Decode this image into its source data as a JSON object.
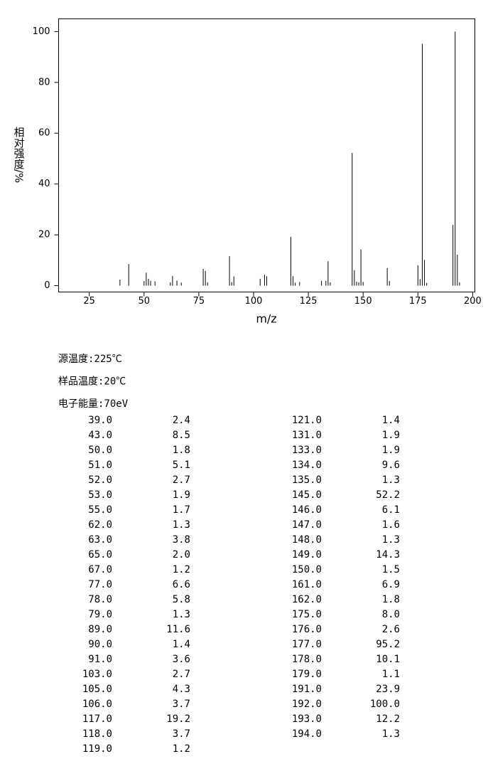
{
  "chart_data": {
    "type": "bar",
    "xlabel": "m/z",
    "ylabel": "相对强度/%",
    "color": "#000000",
    "x": [
      39,
      43,
      50,
      51,
      52,
      53,
      55,
      62,
      63,
      65,
      67,
      77,
      78,
      79,
      89,
      90,
      91,
      103,
      105,
      106,
      117,
      118,
      119,
      121,
      131,
      133,
      134,
      135,
      145,
      146,
      147,
      148,
      149,
      150,
      161,
      162,
      175,
      176,
      177,
      178,
      179,
      191,
      192,
      193,
      194
    ],
    "values": [
      2.4,
      8.5,
      1.8,
      5.1,
      2.7,
      1.9,
      1.7,
      1.3,
      3.8,
      2.0,
      1.2,
      6.6,
      5.8,
      1.3,
      11.6,
      1.4,
      3.6,
      2.7,
      4.3,
      3.7,
      19.2,
      3.7,
      1.2,
      1.4,
      1.9,
      1.9,
      9.6,
      1.3,
      52.2,
      6.1,
      1.6,
      1.3,
      14.3,
      1.5,
      6.9,
      1.8,
      8.0,
      2.6,
      95.2,
      10.1,
      1.1,
      23.9,
      100.0,
      12.2,
      1.3
    ],
    "xlim": [
      11,
      201
    ],
    "xticks": [
      25,
      50,
      75,
      100,
      125,
      150,
      175,
      200
    ],
    "ylim": [
      -2.5,
      105
    ],
    "yticks": [
      0,
      20,
      40,
      60,
      80,
      100
    ]
  },
  "info": [
    "源温度:225℃",
    "样品温度:20℃",
    "电子能量:70eV"
  ],
  "table": {
    "rows": [
      [
        "39.0",
        "2.4"
      ],
      [
        "43.0",
        "8.5"
      ],
      [
        "50.0",
        "1.8"
      ],
      [
        "51.0",
        "5.1"
      ],
      [
        "52.0",
        "2.7"
      ],
      [
        "53.0",
        "1.9"
      ],
      [
        "55.0",
        "1.7"
      ],
      [
        "62.0",
        "1.3"
      ],
      [
        "63.0",
        "3.8"
      ],
      [
        "65.0",
        "2.0"
      ],
      [
        "67.0",
        "1.2"
      ],
      [
        "77.0",
        "6.6"
      ],
      [
        "78.0",
        "5.8"
      ],
      [
        "79.0",
        "1.3"
      ],
      [
        "89.0",
        "11.6"
      ],
      [
        "90.0",
        "1.4"
      ],
      [
        "91.0",
        "3.6"
      ],
      [
        "103.0",
        "2.7"
      ],
      [
        "105.0",
        "4.3"
      ],
      [
        "106.0",
        "3.7"
      ],
      [
        "117.0",
        "19.2"
      ],
      [
        "118.0",
        "3.7"
      ],
      [
        "119.0",
        "1.2"
      ],
      [
        "121.0",
        "1.4"
      ],
      [
        "131.0",
        "1.9"
      ],
      [
        "133.0",
        "1.9"
      ],
      [
        "134.0",
        "9.6"
      ],
      [
        "135.0",
        "1.3"
      ],
      [
        "145.0",
        "52.2"
      ],
      [
        "146.0",
        "6.1"
      ],
      [
        "147.0",
        "1.6"
      ],
      [
        "148.0",
        "1.3"
      ],
      [
        "149.0",
        "14.3"
      ],
      [
        "150.0",
        "1.5"
      ],
      [
        "161.0",
        "6.9"
      ],
      [
        "162.0",
        "1.8"
      ],
      [
        "175.0",
        "8.0"
      ],
      [
        "176.0",
        "2.6"
      ],
      [
        "177.0",
        "95.2"
      ],
      [
        "178.0",
        "10.1"
      ],
      [
        "179.0",
        "1.1"
      ],
      [
        "191.0",
        "23.9"
      ],
      [
        "192.0",
        "100.0"
      ],
      [
        "193.0",
        "12.2"
      ],
      [
        "194.0",
        "1.3"
      ]
    ]
  }
}
